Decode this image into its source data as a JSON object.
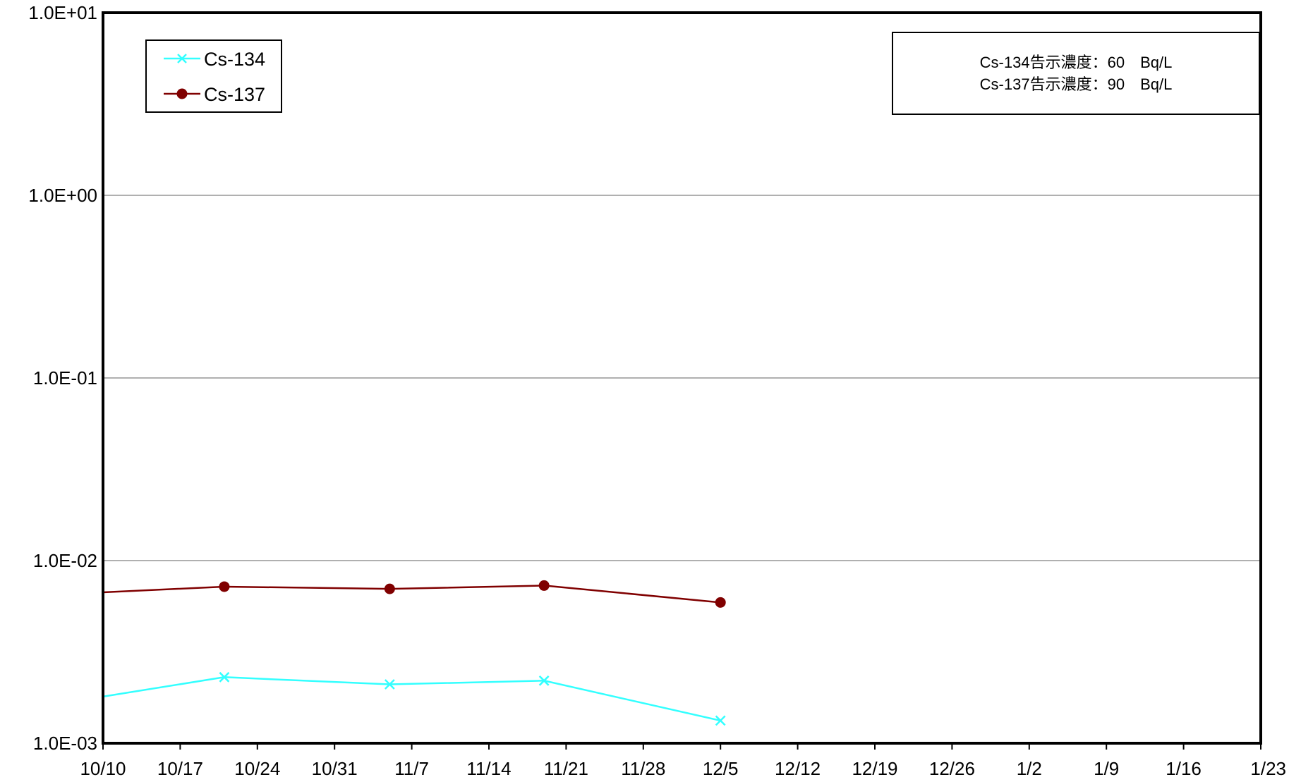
{
  "chart_data": {
    "type": "line",
    "y_scale": "log",
    "ylim": [
      0.001,
      10
    ],
    "y_ticks": [
      "1.0E+01",
      "1.0E+00",
      "1.0E-01",
      "1.0E-02",
      "1.0E-03"
    ],
    "y_tick_values": [
      10,
      1,
      0.1,
      0.01,
      0.001
    ],
    "x_range": [
      "10/10",
      "1/23"
    ],
    "x_ticks": [
      "10/10",
      "10/17",
      "10/24",
      "10/31",
      "11/7",
      "11/14",
      "11/21",
      "11/28",
      "12/5",
      "12/12",
      "12/19",
      "12/26",
      "1/2",
      "1/9",
      "1/16",
      "1/23"
    ],
    "grid": "horizontal major lines",
    "legend_position": "top-left",
    "series": [
      {
        "name": "Cs-134",
        "color": "#33FFFF",
        "marker": "x",
        "x": [
          "10/10",
          "10/21",
          "11/5",
          "11/19",
          "12/5"
        ],
        "values": [
          0.0018,
          0.0023,
          0.0021,
          0.0022,
          0.00133
        ]
      },
      {
        "name": "Cs-137",
        "color": "#800000",
        "marker": "circle",
        "x": [
          "10/10",
          "10/21",
          "11/5",
          "11/19",
          "12/5"
        ],
        "values": [
          0.0067,
          0.0072,
          0.007,
          0.0073,
          0.0059
        ]
      }
    ],
    "annotation": [
      "Cs-134告示濃度：60　Bq/L",
      "Cs-137告示濃度：90　Bq/L"
    ]
  }
}
